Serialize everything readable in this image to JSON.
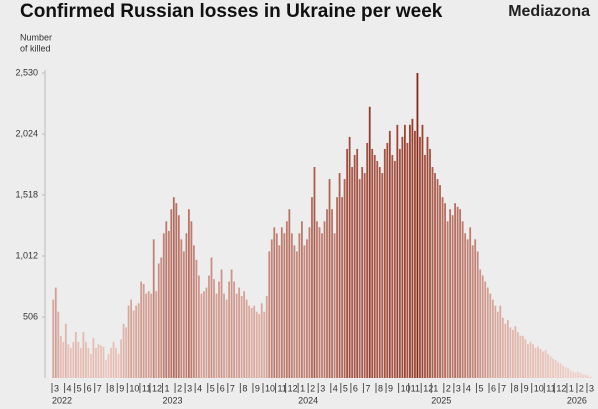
{
  "chart_data": {
    "type": "bar",
    "title": "Confirmed Russian losses in Ukraine per week",
    "brand": "Mediazona",
    "ylabel": [
      "Number",
      "of killed"
    ],
    "ylim": [
      0,
      2530
    ],
    "yticks": [
      {
        "value": 506,
        "label": "506"
      },
      {
        "value": 1012,
        "label": "1,012"
      },
      {
        "value": 1518,
        "label": "1,518"
      },
      {
        "value": 2024,
        "label": "2,024"
      },
      {
        "value": 2530,
        "label": "2,530"
      }
    ],
    "color_low": "#f2d2ca",
    "color_high": "#8a2614",
    "years": [
      "2022",
      "2023",
      "2024",
      "2025",
      "2026"
    ],
    "categories": [
      "3",
      null,
      null,
      null,
      null,
      "4",
      null,
      null,
      null,
      "5",
      null,
      null,
      null,
      "6",
      null,
      null,
      null,
      "7",
      null,
      null,
      null,
      null,
      "8",
      null,
      null,
      null,
      "9",
      null,
      null,
      null,
      "10",
      null,
      null,
      null,
      null,
      "11",
      null,
      null,
      null,
      "12",
      null,
      null,
      null,
      null,
      "1",
      null,
      null,
      null,
      null,
      "2",
      null,
      null,
      null,
      "3",
      null,
      null,
      null,
      "4",
      null,
      null,
      null,
      null,
      "5",
      null,
      null,
      null,
      "6",
      null,
      null,
      null,
      "7",
      null,
      null,
      null,
      null,
      "8",
      null,
      null,
      null,
      null,
      "9",
      null,
      null,
      null,
      "10",
      null,
      null,
      null,
      null,
      "11",
      null,
      null,
      null,
      "12",
      null,
      null,
      null,
      null,
      "1",
      null,
      null,
      null,
      "2",
      null,
      null,
      null,
      "3",
      null,
      null,
      null,
      null,
      "4",
      null,
      null,
      null,
      "5",
      null,
      null,
      null,
      "6",
      null,
      null,
      null,
      null,
      "7",
      null,
      null,
      null,
      null,
      "8",
      null,
      null,
      null,
      "9",
      null,
      null,
      null,
      null,
      "10",
      null,
      null,
      null,
      "11",
      null,
      null,
      null,
      null,
      "12",
      null,
      null,
      null,
      "1",
      null,
      null,
      null,
      null,
      "2",
      null,
      null,
      null,
      "3",
      null,
      null,
      null,
      "4",
      null,
      null,
      null,
      null,
      "5",
      null,
      null,
      null,
      null,
      "6",
      null,
      null,
      null,
      "7",
      null,
      null,
      null,
      null,
      "8",
      null,
      null,
      null,
      "9",
      null,
      null,
      null,
      "10",
      null,
      null,
      null,
      null,
      "11",
      null,
      null,
      null,
      "12",
      null,
      null,
      null,
      null,
      "1",
      null,
      null,
      null,
      "2",
      null,
      null,
      null,
      "3",
      null
    ],
    "values": [
      650,
      750,
      550,
      350,
      300,
      450,
      280,
      250,
      300,
      380,
      300,
      250,
      380,
      300,
      250,
      200,
      330,
      250,
      280,
      270,
      260,
      150,
      200,
      250,
      300,
      250,
      200,
      320,
      450,
      420,
      600,
      650,
      560,
      600,
      620,
      800,
      780,
      700,
      720,
      700,
      1150,
      720,
      950,
      1000,
      1200,
      1300,
      1220,
      1400,
      1500,
      1450,
      1350,
      1150,
      1050,
      1200,
      1400,
      1300,
      1100,
      980,
      850,
      700,
      720,
      750,
      850,
      1000,
      820,
      700,
      800,
      900,
      700,
      650,
      800,
      900,
      800,
      700,
      750,
      680,
      720,
      650,
      600,
      580,
      600,
      550,
      530,
      620,
      550,
      680,
      1050,
      1150,
      1250,
      1200,
      1100,
      1250,
      1200,
      1300,
      1400,
      1200,
      1100,
      1050,
      1200,
      1300,
      1100,
      1150,
      1250,
      1500,
      1750,
      1300,
      1250,
      1200,
      1300,
      1400,
      1650,
      1400,
      1200,
      1500,
      1700,
      1500,
      1650,
      1900,
      2000,
      1750,
      1850,
      1900,
      1650,
      1750,
      1700,
      1950,
      2250,
      1900,
      1850,
      1800,
      1750,
      1700,
      1900,
      1950,
      2050,
      1850,
      1800,
      2100,
      1900,
      2000,
      2100,
      1950,
      2100,
      2150,
      2050,
      2530,
      2000,
      2100,
      1850,
      2000,
      1900,
      1750,
      1700,
      1650,
      1600,
      1500,
      1450,
      1300,
      1400,
      1350,
      1450,
      1420,
      1400,
      1300,
      1200,
      1150,
      1250,
      1100,
      1150,
      1050,
      900,
      850,
      800,
      750,
      700,
      650,
      600,
      550,
      600,
      500,
      450,
      480,
      420,
      400,
      430,
      380,
      350,
      350,
      320,
      280,
      300,
      280,
      250,
      260,
      240,
      220,
      230,
      200,
      180,
      160,
      150,
      130,
      120,
      100,
      90,
      80,
      60,
      50,
      45,
      50,
      40,
      30,
      30,
      20,
      10
    ]
  }
}
